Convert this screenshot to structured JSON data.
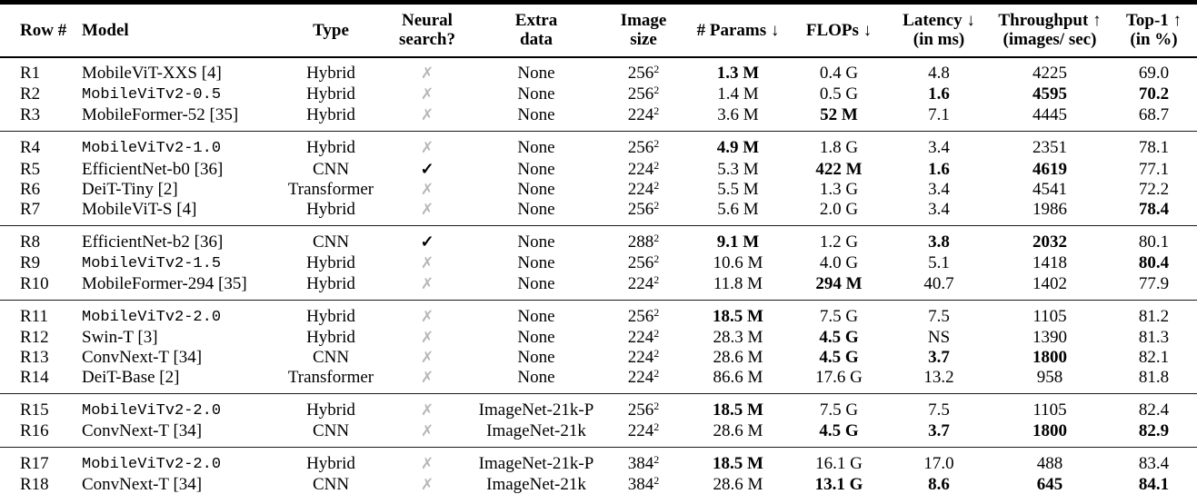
{
  "table": {
    "icons": {
      "check": "✓",
      "cross": "✗"
    },
    "colors": {
      "check": "#000000",
      "cross": "#b7b7b7",
      "text": "#000000",
      "rule": "#000000",
      "background": "#ffffff"
    },
    "columns": [
      {
        "key": "row_id",
        "lines": [
          "Row #"
        ],
        "align": "left"
      },
      {
        "key": "model",
        "lines": [
          "Model"
        ],
        "align": "left"
      },
      {
        "key": "type",
        "lines": [
          "Type"
        ],
        "align": "center"
      },
      {
        "key": "neural_search",
        "lines": [
          "Neural",
          "search?"
        ],
        "align": "center"
      },
      {
        "key": "extra_data",
        "lines": [
          "Extra",
          "data"
        ],
        "align": "center"
      },
      {
        "key": "image_size",
        "lines": [
          "Image",
          "size"
        ],
        "align": "center"
      },
      {
        "key": "params",
        "lines": [
          "# Params ↓"
        ],
        "align": "center"
      },
      {
        "key": "flops",
        "lines": [
          "FLOPs ↓"
        ],
        "align": "center"
      },
      {
        "key": "latency",
        "lines": [
          "Latency ↓",
          "(in ms)"
        ],
        "align": "center"
      },
      {
        "key": "throughput",
        "lines": [
          "Throughput ↑",
          "(images/ sec)"
        ],
        "align": "center"
      },
      {
        "key": "top1",
        "lines": [
          "Top-1 ↑",
          "(in %)"
        ],
        "align": "center"
      }
    ],
    "groups": [
      {
        "rows": [
          {
            "row_id": "R1",
            "model": {
              "text": "MobileViT-XXS [4]",
              "mono": false
            },
            "type": "Hybrid",
            "neural_search": false,
            "extra_data": "None",
            "image_size": {
              "base": "256",
              "exp": "2"
            },
            "params": {
              "text": "1.3 M",
              "bold": true
            },
            "flops": {
              "text": "0.4 G",
              "bold": false
            },
            "latency": {
              "text": "4.8",
              "bold": false
            },
            "throughput": {
              "text": "4225",
              "bold": false
            },
            "top1": {
              "text": "69.0",
              "bold": false
            }
          },
          {
            "row_id": "R2",
            "model": {
              "text": "MobileViTv2-0.5",
              "mono": true
            },
            "type": "Hybrid",
            "neural_search": false,
            "extra_data": "None",
            "image_size": {
              "base": "256",
              "exp": "2"
            },
            "params": {
              "text": "1.4 M",
              "bold": false
            },
            "flops": {
              "text": "0.5 G",
              "bold": false
            },
            "latency": {
              "text": "1.6",
              "bold": true
            },
            "throughput": {
              "text": "4595",
              "bold": true
            },
            "top1": {
              "text": "70.2",
              "bold": true
            }
          },
          {
            "row_id": "R3",
            "model": {
              "text": "MobileFormer-52 [35]",
              "mono": false
            },
            "type": "Hybrid",
            "neural_search": false,
            "extra_data": "None",
            "image_size": {
              "base": "224",
              "exp": "2"
            },
            "params": {
              "text": "3.6 M",
              "bold": false
            },
            "flops": {
              "text": "52 M",
              "bold": true
            },
            "latency": {
              "text": "7.1",
              "bold": false
            },
            "throughput": {
              "text": "4445",
              "bold": false
            },
            "top1": {
              "text": "68.7",
              "bold": false
            }
          }
        ]
      },
      {
        "rows": [
          {
            "row_id": "R4",
            "model": {
              "text": "MobileViTv2-1.0",
              "mono": true
            },
            "type": "Hybrid",
            "neural_search": false,
            "extra_data": "None",
            "image_size": {
              "base": "256",
              "exp": "2"
            },
            "params": {
              "text": "4.9 M",
              "bold": true
            },
            "flops": {
              "text": "1.8 G",
              "bold": false
            },
            "latency": {
              "text": "3.4",
              "bold": false
            },
            "throughput": {
              "text": "2351",
              "bold": false
            },
            "top1": {
              "text": "78.1",
              "bold": false
            }
          },
          {
            "row_id": "R5",
            "model": {
              "text": "EfficientNet-b0 [36]",
              "mono": false
            },
            "type": "CNN",
            "neural_search": true,
            "extra_data": "None",
            "image_size": {
              "base": "224",
              "exp": "2"
            },
            "params": {
              "text": "5.3 M",
              "bold": false
            },
            "flops": {
              "text": "422 M",
              "bold": true
            },
            "latency": {
              "text": "1.6",
              "bold": true
            },
            "throughput": {
              "text": "4619",
              "bold": true
            },
            "top1": {
              "text": "77.1",
              "bold": false
            }
          },
          {
            "row_id": "R6",
            "model": {
              "text": "DeiT-Tiny [2]",
              "mono": false
            },
            "type": "Transformer",
            "neural_search": false,
            "extra_data": "None",
            "image_size": {
              "base": "224",
              "exp": "2"
            },
            "params": {
              "text": "5.5 M",
              "bold": false
            },
            "flops": {
              "text": "1.3 G",
              "bold": false
            },
            "latency": {
              "text": "3.4",
              "bold": false
            },
            "throughput": {
              "text": "4541",
              "bold": false
            },
            "top1": {
              "text": "72.2",
              "bold": false
            }
          },
          {
            "row_id": "R7",
            "model": {
              "text": "MobileViT-S [4]",
              "mono": false
            },
            "type": "Hybrid",
            "neural_search": false,
            "extra_data": "None",
            "image_size": {
              "base": "256",
              "exp": "2"
            },
            "params": {
              "text": "5.6 M",
              "bold": false
            },
            "flops": {
              "text": "2.0 G",
              "bold": false
            },
            "latency": {
              "text": "3.4",
              "bold": false
            },
            "throughput": {
              "text": "1986",
              "bold": false
            },
            "top1": {
              "text": "78.4",
              "bold": true
            }
          }
        ]
      },
      {
        "rows": [
          {
            "row_id": "R8",
            "model": {
              "text": "EfficientNet-b2 [36]",
              "mono": false
            },
            "type": "CNN",
            "neural_search": true,
            "extra_data": "None",
            "image_size": {
              "base": "288",
              "exp": "2"
            },
            "params": {
              "text": "9.1 M",
              "bold": true
            },
            "flops": {
              "text": "1.2 G",
              "bold": false
            },
            "latency": {
              "text": "3.8",
              "bold": true
            },
            "throughput": {
              "text": "2032",
              "bold": true
            },
            "top1": {
              "text": "80.1",
              "bold": false
            }
          },
          {
            "row_id": "R9",
            "model": {
              "text": "MobileViTv2-1.5",
              "mono": true
            },
            "type": "Hybrid",
            "neural_search": false,
            "extra_data": "None",
            "image_size": {
              "base": "256",
              "exp": "2"
            },
            "params": {
              "text": "10.6 M",
              "bold": false
            },
            "flops": {
              "text": "4.0 G",
              "bold": false
            },
            "latency": {
              "text": "5.1",
              "bold": false
            },
            "throughput": {
              "text": "1418",
              "bold": false
            },
            "top1": {
              "text": "80.4",
              "bold": true
            }
          },
          {
            "row_id": "R10",
            "model": {
              "text": "MobileFormer-294 [35]",
              "mono": false
            },
            "type": "Hybrid",
            "neural_search": false,
            "extra_data": "None",
            "image_size": {
              "base": "224",
              "exp": "2"
            },
            "params": {
              "text": "11.8 M",
              "bold": false
            },
            "flops": {
              "text": "294 M",
              "bold": true
            },
            "latency": {
              "text": "40.7",
              "bold": false
            },
            "throughput": {
              "text": "1402",
              "bold": false
            },
            "top1": {
              "text": "77.9",
              "bold": false
            }
          }
        ]
      },
      {
        "rows": [
          {
            "row_id": "R11",
            "model": {
              "text": "MobileViTv2-2.0",
              "mono": true
            },
            "type": "Hybrid",
            "neural_search": false,
            "extra_data": "None",
            "image_size": {
              "base": "256",
              "exp": "2"
            },
            "params": {
              "text": "18.5 M",
              "bold": true
            },
            "flops": {
              "text": "7.5 G",
              "bold": false
            },
            "latency": {
              "text": "7.5",
              "bold": false
            },
            "throughput": {
              "text": "1105",
              "bold": false
            },
            "top1": {
              "text": "81.2",
              "bold": false
            }
          },
          {
            "row_id": "R12",
            "model": {
              "text": "Swin-T [3]",
              "mono": false
            },
            "type": "Hybrid",
            "neural_search": false,
            "extra_data": "None",
            "image_size": {
              "base": "224",
              "exp": "2"
            },
            "params": {
              "text": "28.3 M",
              "bold": false
            },
            "flops": {
              "text": "4.5 G",
              "bold": true
            },
            "latency": {
              "text": "NS",
              "bold": false
            },
            "throughput": {
              "text": "1390",
              "bold": false
            },
            "top1": {
              "text": "81.3",
              "bold": false
            }
          },
          {
            "row_id": "R13",
            "model": {
              "text": "ConvNext-T [34]",
              "mono": false
            },
            "type": "CNN",
            "neural_search": false,
            "extra_data": "None",
            "image_size": {
              "base": "224",
              "exp": "2"
            },
            "params": {
              "text": "28.6 M",
              "bold": false
            },
            "flops": {
              "text": "4.5 G",
              "bold": true
            },
            "latency": {
              "text": "3.7",
              "bold": true
            },
            "throughput": {
              "text": "1800",
              "bold": true
            },
            "top1": {
              "text": "82.1",
              "bold": false
            }
          },
          {
            "row_id": "R14",
            "model": {
              "text": "DeiT-Base [2]",
              "mono": false
            },
            "type": "Transformer",
            "neural_search": false,
            "extra_data": "None",
            "image_size": {
              "base": "224",
              "exp": "2"
            },
            "params": {
              "text": "86.6 M",
              "bold": false
            },
            "flops": {
              "text": "17.6 G",
              "bold": false
            },
            "latency": {
              "text": "13.2",
              "bold": false
            },
            "throughput": {
              "text": "958",
              "bold": false
            },
            "top1": {
              "text": "81.8",
              "bold": false
            }
          }
        ]
      },
      {
        "rows": [
          {
            "row_id": "R15",
            "model": {
              "text": "MobileViTv2-2.0",
              "mono": true
            },
            "type": "Hybrid",
            "neural_search": false,
            "extra_data": "ImageNet-21k-P",
            "image_size": {
              "base": "256",
              "exp": "2"
            },
            "params": {
              "text": "18.5 M",
              "bold": true
            },
            "flops": {
              "text": "7.5 G",
              "bold": false
            },
            "latency": {
              "text": "7.5",
              "bold": false
            },
            "throughput": {
              "text": "1105",
              "bold": false
            },
            "top1": {
              "text": "82.4",
              "bold": false
            }
          },
          {
            "row_id": "R16",
            "model": {
              "text": "ConvNext-T [34]",
              "mono": false
            },
            "type": "CNN",
            "neural_search": false,
            "extra_data": "ImageNet-21k",
            "image_size": {
              "base": "224",
              "exp": "2"
            },
            "params": {
              "text": "28.6 M",
              "bold": false
            },
            "flops": {
              "text": "4.5 G",
              "bold": true
            },
            "latency": {
              "text": "3.7",
              "bold": true
            },
            "throughput": {
              "text": "1800",
              "bold": true
            },
            "top1": {
              "text": "82.9",
              "bold": true
            }
          }
        ]
      },
      {
        "rows": [
          {
            "row_id": "R17",
            "model": {
              "text": "MobileViTv2-2.0",
              "mono": true
            },
            "type": "Hybrid",
            "neural_search": false,
            "extra_data": "ImageNet-21k-P",
            "image_size": {
              "base": "384",
              "exp": "2"
            },
            "params": {
              "text": "18.5 M",
              "bold": true
            },
            "flops": {
              "text": "16.1 G",
              "bold": false
            },
            "latency": {
              "text": "17.0",
              "bold": false
            },
            "throughput": {
              "text": "488",
              "bold": false
            },
            "top1": {
              "text": "83.4",
              "bold": false
            }
          },
          {
            "row_id": "R18",
            "model": {
              "text": "ConvNext-T [34]",
              "mono": false
            },
            "type": "CNN",
            "neural_search": false,
            "extra_data": "ImageNet-21k",
            "image_size": {
              "base": "384",
              "exp": "2"
            },
            "params": {
              "text": "28.6 M",
              "bold": false
            },
            "flops": {
              "text": "13.1 G",
              "bold": true
            },
            "latency": {
              "text": "8.6",
              "bold": true
            },
            "throughput": {
              "text": "645",
              "bold": true
            },
            "top1": {
              "text": "84.1",
              "bold": true
            }
          }
        ]
      }
    ]
  }
}
